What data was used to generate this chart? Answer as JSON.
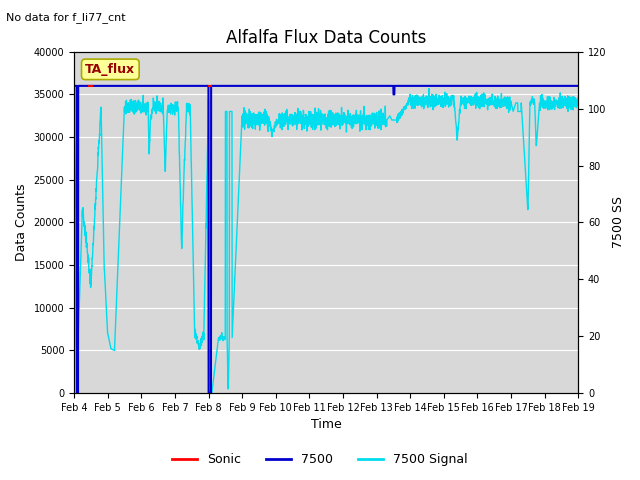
{
  "title": "Alfalfa Flux Data Counts",
  "top_left_text": "No data for f_li77_cnt",
  "xlabel": "Time",
  "ylabel_left": "Data Counts",
  "ylabel_right": "7500 SS",
  "ylim_left": [
    0,
    40000
  ],
  "ylim_right": [
    0,
    120
  ],
  "yticks_left": [
    0,
    5000,
    10000,
    15000,
    20000,
    25000,
    30000,
    35000,
    40000
  ],
  "yticks_right": [
    0,
    20,
    40,
    60,
    80,
    100,
    120
  ],
  "xtick_labels": [
    "Feb 4",
    "Feb 5",
    "Feb 6",
    "Feb 7",
    "Feb 8",
    "Feb 9",
    "Feb 10",
    "Feb 11",
    "Feb 12",
    "Feb 13",
    "Feb 14",
    "Feb 15",
    "Feb 16",
    "Feb 17",
    "Feb 18",
    "Feb 19"
  ],
  "bg_color": "#d8d8d8",
  "fig_bg_color": "#ffffff",
  "annotation_box_text": "TA_flux",
  "annotation_box_color": "#ffff99",
  "annotation_box_border": "#aaaa00",
  "legend_entries": [
    "Sonic",
    "7500",
    "7500 Signal"
  ],
  "sonic_color": "#ff0000",
  "line7500_color": "#0000cc",
  "signal_color": "#00ddee",
  "line7500_lw": 1.5,
  "signal_lw": 1.0,
  "sonic_lw": 1.5,
  "title_fontsize": 12,
  "label_fontsize": 9,
  "tick_fontsize": 7,
  "legend_fontsize": 9
}
